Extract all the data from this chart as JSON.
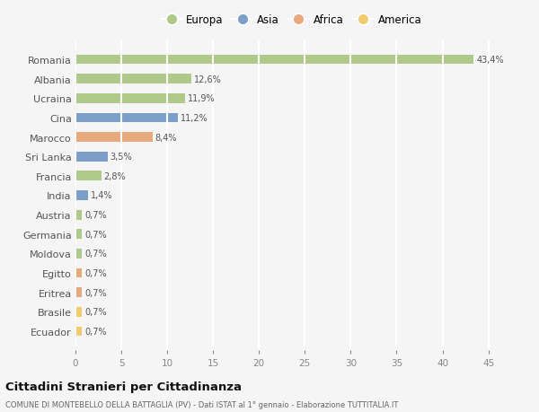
{
  "countries": [
    "Romania",
    "Albania",
    "Ucraina",
    "Cina",
    "Marocco",
    "Sri Lanka",
    "Francia",
    "India",
    "Austria",
    "Germania",
    "Moldova",
    "Egitto",
    "Eritrea",
    "Brasile",
    "Ecuador"
  ],
  "values": [
    43.4,
    12.6,
    11.9,
    11.2,
    8.4,
    3.5,
    2.8,
    1.4,
    0.7,
    0.7,
    0.7,
    0.7,
    0.7,
    0.7,
    0.7
  ],
  "labels": [
    "43,4%",
    "12,6%",
    "11,9%",
    "11,2%",
    "8,4%",
    "3,5%",
    "2,8%",
    "1,4%",
    "0,7%",
    "0,7%",
    "0,7%",
    "0,7%",
    "0,7%",
    "0,7%",
    "0,7%"
  ],
  "continents": [
    "Europa",
    "Europa",
    "Europa",
    "Asia",
    "Africa",
    "Asia",
    "Europa",
    "Asia",
    "Europa",
    "Europa",
    "Europa",
    "Africa",
    "Africa",
    "America",
    "America"
  ],
  "colors": {
    "Europa": "#aec98a",
    "Asia": "#7b9fc7",
    "Africa": "#e8a97e",
    "America": "#f0cc6e"
  },
  "legend_order": [
    "Europa",
    "Asia",
    "Africa",
    "America"
  ],
  "title": "Cittadini Stranieri per Cittadinanza",
  "subtitle": "COMUNE DI MONTEBELLO DELLA BATTAGLIA (PV) - Dati ISTAT al 1° gennaio - Elaborazione TUTTITALIA.IT",
  "xlim": [
    0,
    47
  ],
  "xticks": [
    0,
    5,
    10,
    15,
    20,
    25,
    30,
    35,
    40,
    45
  ],
  "bg_color": "#f5f5f5",
  "grid_color": "#ffffff",
  "bar_height": 0.5
}
